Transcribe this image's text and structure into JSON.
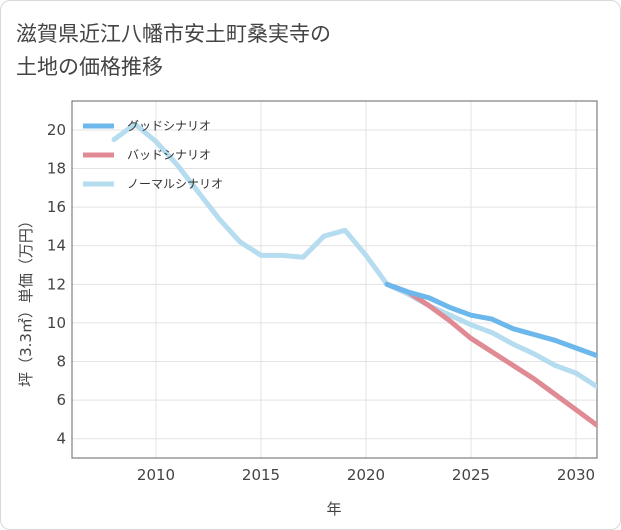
{
  "title_lines": [
    "滋賀県近江八幡市安土町桑実寺の",
    "土地の価格推移"
  ],
  "chart_data": {
    "type": "line",
    "xlabel": "年",
    "ylabel": "坪（3.3㎡）単価（万円）",
    "xlim": [
      2006,
      2031
    ],
    "ylim": [
      3,
      21.5
    ],
    "xticks": [
      2010,
      2015,
      2020,
      2025,
      2030
    ],
    "yticks": [
      4,
      6,
      8,
      10,
      12,
      14,
      16,
      18,
      20
    ],
    "grid": true,
    "legend_position": "top-left",
    "series": [
      {
        "name": "グッドシナリオ",
        "color": "#6cb8ec",
        "x": [
          2021,
          2022,
          2023,
          2024,
          2025,
          2026,
          2027,
          2028,
          2029,
          2030,
          2031
        ],
        "y": [
          12.0,
          11.6,
          11.3,
          10.8,
          10.4,
          10.2,
          9.7,
          9.4,
          9.1,
          8.7,
          8.3
        ]
      },
      {
        "name": "バッドシナリオ",
        "color": "#e08a94",
        "x": [
          2021,
          2022,
          2023,
          2024,
          2025,
          2026,
          2027,
          2028,
          2029,
          2030,
          2031
        ],
        "y": [
          12.0,
          11.6,
          10.9,
          10.1,
          9.2,
          8.5,
          7.8,
          7.1,
          6.3,
          5.5,
          4.7
        ]
      },
      {
        "name": "ノーマルシナリオ",
        "color": "#b5dcef",
        "x": [
          2008,
          2009,
          2010,
          2011,
          2012,
          2013,
          2014,
          2015,
          2016,
          2017,
          2018,
          2019,
          2020,
          2021,
          2022,
          2023,
          2024,
          2025,
          2026,
          2027,
          2028,
          2029,
          2030,
          2031
        ],
        "y": [
          19.5,
          20.3,
          19.4,
          18.2,
          16.8,
          15.4,
          14.2,
          13.5,
          13.5,
          13.4,
          14.5,
          14.8,
          13.5,
          12.0,
          11.5,
          10.9,
          10.4,
          9.9,
          9.5,
          8.9,
          8.4,
          7.8,
          7.4,
          6.7
        ]
      }
    ]
  }
}
